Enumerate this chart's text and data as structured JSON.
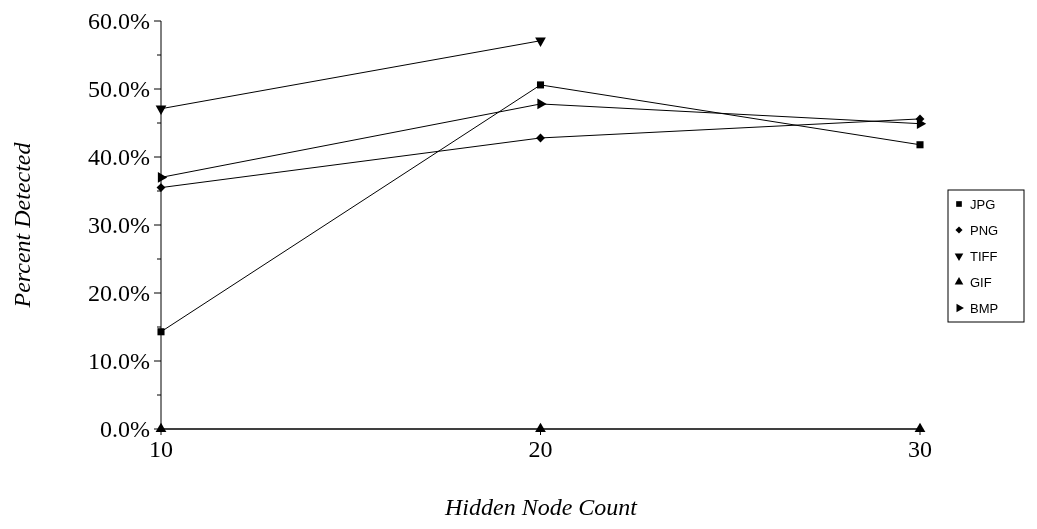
{
  "chart_data": {
    "type": "line",
    "xlabel": "Hidden Node Count",
    "ylabel": "Percent Detected",
    "x": [
      10,
      20,
      30
    ],
    "series": [
      {
        "name": "JPG",
        "color": "#000000",
        "marker": "square",
        "values": [
          14.3,
          50.6,
          41.8
        ]
      },
      {
        "name": "PNG",
        "color": "#000000",
        "marker": "diamond",
        "values": [
          35.5,
          42.8,
          45.6
        ]
      },
      {
        "name": "TIFF",
        "color": "#000000",
        "marker": "triangle-down",
        "values": [
          47.1,
          57.1,
          null
        ]
      },
      {
        "name": "GIF",
        "color": "#000000",
        "marker": "triangle",
        "values": [
          0,
          0,
          0
        ]
      },
      {
        "name": "BMP",
        "color": "#000000",
        "marker": "triangle-right",
        "values": [
          37.0,
          47.8,
          44.9
        ]
      }
    ],
    "xlim": [
      10,
      30
    ],
    "xticks": [
      10,
      20,
      30
    ],
    "ylim": [
      0,
      60
    ],
    "yticks": [
      {
        "value": 0,
        "label": "0.0%"
      },
      {
        "value": 5,
        "label": null
      },
      {
        "value": 10,
        "label": "10.0%"
      },
      {
        "value": 15,
        "label": null
      },
      {
        "value": 20,
        "label": "20.0%"
      },
      {
        "value": 25,
        "label": null
      },
      {
        "value": 30,
        "label": "30.0%"
      },
      {
        "value": 35,
        "label": null
      },
      {
        "value": 40,
        "label": "40.0%"
      },
      {
        "value": 45,
        "label": null
      },
      {
        "value": 50,
        "label": "50.0%"
      },
      {
        "value": 55,
        "label": null
      },
      {
        "value": 60,
        "label": "60.0%"
      }
    ],
    "legend": "right",
    "grid": false
  }
}
